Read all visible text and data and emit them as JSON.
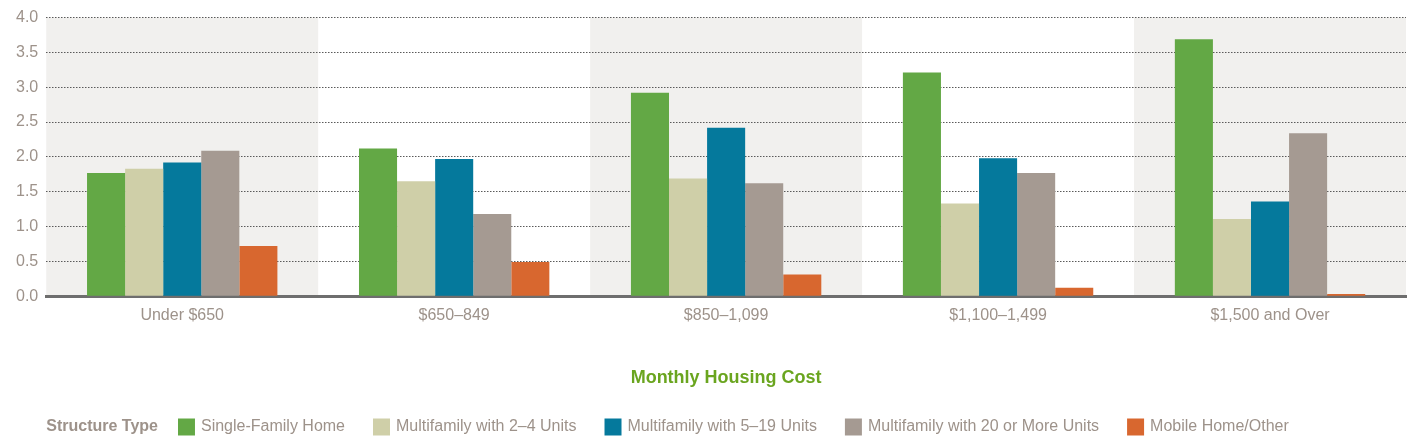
{
  "chart_data": {
    "type": "bar",
    "xlabel": "Monthly Housing Cost",
    "legend_title": "Structure Type",
    "categories": [
      "Under $650",
      "$650–849",
      "$850–1,099",
      "$1,100–1,499",
      "$1,500 and Over"
    ],
    "series": [
      {
        "name": "Single-Family Home",
        "color": "#63a845",
        "values": [
          1.77,
          2.12,
          2.92,
          3.21,
          3.69
        ]
      },
      {
        "name": "Multifamily with 2–4 Units",
        "color": "#cfcfa8",
        "values": [
          1.83,
          1.65,
          1.69,
          1.33,
          1.11
        ]
      },
      {
        "name": "Multifamily with 5–19 Units",
        "color": "#05799c",
        "values": [
          1.92,
          1.97,
          2.42,
          1.98,
          1.36
        ]
      },
      {
        "name": "Multifamily with 20 or More Units",
        "color": "#a59a92",
        "values": [
          2.09,
          1.18,
          1.62,
          1.77,
          2.34
        ]
      },
      {
        "name": "Mobile Home/Other",
        "color": "#d8672f",
        "values": [
          0.72,
          0.49,
          0.31,
          0.12,
          0.03
        ]
      }
    ],
    "ylim": [
      0,
      4
    ],
    "yticks": [
      {
        "value": 0,
        "label": "0.0"
      },
      0.5,
      {
        "value": 1,
        "label": "1.0"
      },
      1.5,
      {
        "value": 2,
        "label": "2.0"
      },
      2.5,
      {
        "value": 3,
        "label": "3.0"
      },
      3.5,
      {
        "value": 4,
        "label": "4.0"
      }
    ],
    "grid": "y",
    "legend": "bottom",
    "bands": [
      {
        "axis": "x",
        "from": "Under $650",
        "to": "Under $650",
        "color": "#f1f0ee"
      },
      {
        "axis": "x",
        "from": "$850–1,099",
        "to": "$850–1,099",
        "color": "#f1f0ee"
      },
      {
        "axis": "x",
        "from": "$1,500 and Over",
        "to": "$1,500 and Over",
        "color": "#f1f0ee"
      }
    ]
  }
}
